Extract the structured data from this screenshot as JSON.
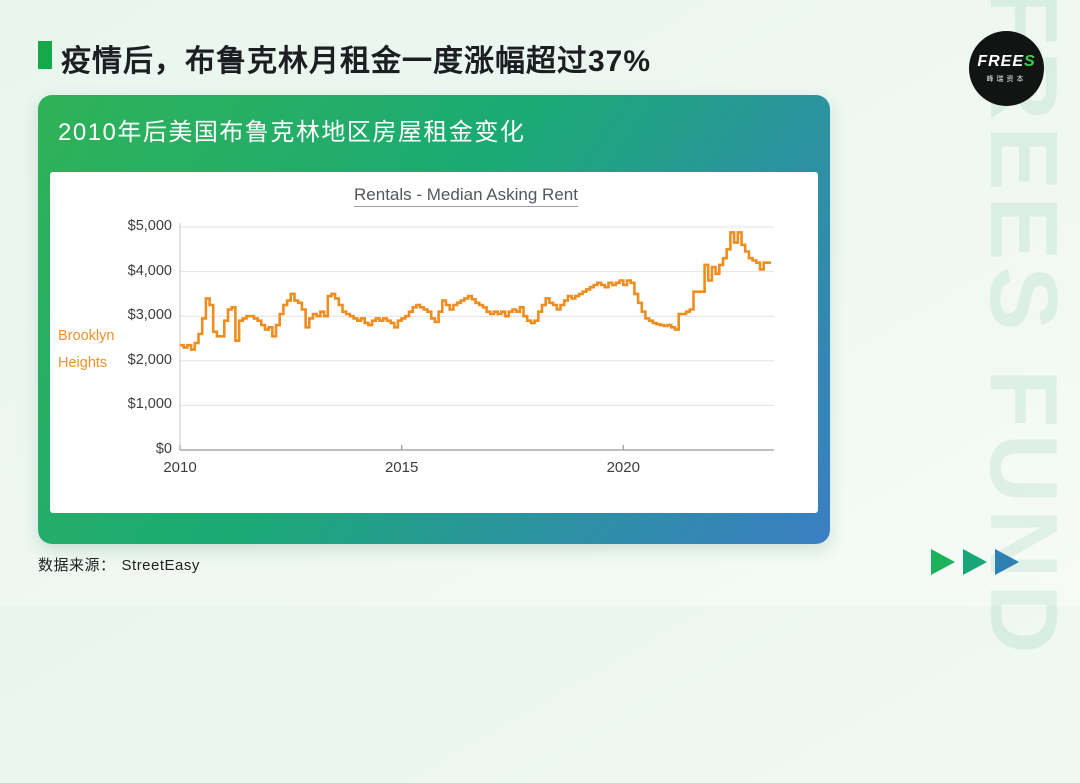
{
  "page": {
    "title": "疫情后，布鲁克林月租金一度涨幅超过37%",
    "source_label": "数据来源：",
    "source_value": "StreetEasy"
  },
  "logo": {
    "brand_main": "FREE",
    "brand_accent": "S",
    "brand_sub": "峰瑞资本"
  },
  "watermark": "FREES FUND",
  "card": {
    "header": "2010年后美国布鲁克林地区房屋租金变化"
  },
  "chart_data": {
    "type": "line",
    "style": "step",
    "frequency": "monthly",
    "title": "Rentals - Median Asking Rent",
    "series_label": "Brooklyn Heights",
    "x_start": 2010.0,
    "x_ticks": [
      2010,
      2015,
      2020
    ],
    "y_ticks": [
      "$0",
      "$1,000",
      "$2,000",
      "$3,000",
      "$4,000",
      "$5,000"
    ],
    "y_tick_values": [
      0,
      1000,
      2000,
      3000,
      4000,
      5000
    ],
    "xlim": [
      2010,
      2023.4
    ],
    "ylim": [
      0,
      5000
    ],
    "grid": "horizontal",
    "legend_position": "left-outside",
    "line_color": "#ef8d1f",
    "label_color": "#f0912c",
    "values": [
      2350,
      2300,
      2350,
      2250,
      2400,
      2600,
      2950,
      3400,
      3250,
      2650,
      2550,
      2550,
      2900,
      3150,
      3200,
      2450,
      2900,
      2950,
      3000,
      3000,
      2950,
      2900,
      2800,
      2700,
      2750,
      2550,
      2800,
      3050,
      3250,
      3350,
      3500,
      3350,
      3300,
      3150,
      2750,
      2950,
      3050,
      3000,
      3100,
      3000,
      3450,
      3500,
      3400,
      3250,
      3100,
      3050,
      3000,
      2950,
      2900,
      2950,
      2850,
      2800,
      2900,
      2950,
      2900,
      2950,
      2900,
      2850,
      2750,
      2900,
      2950,
      3000,
      3100,
      3200,
      3250,
      3200,
      3150,
      3100,
      2950,
      2870,
      3100,
      3350,
      3250,
      3150,
      3250,
      3300,
      3350,
      3400,
      3450,
      3380,
      3300,
      3250,
      3200,
      3100,
      3050,
      3100,
      3050,
      3100,
      3000,
      3100,
      3150,
      3100,
      3200,
      3000,
      2900,
      2850,
      2900,
      3100,
      3250,
      3400,
      3300,
      3250,
      3150,
      3250,
      3350,
      3450,
      3400,
      3450,
      3500,
      3550,
      3600,
      3650,
      3700,
      3750,
      3700,
      3650,
      3750,
      3700,
      3750,
      3800,
      3700,
      3800,
      3750,
      3500,
      3300,
      3100,
      2950,
      2900,
      2850,
      2820,
      2800,
      2780,
      2800,
      2750,
      2700,
      3050,
      3050,
      3100,
      3150,
      3550,
      3550,
      3550,
      4150,
      3800,
      4100,
      3950,
      4150,
      4300,
      4500,
      4880,
      4650,
      4880,
      4600,
      4450,
      4300,
      4250,
      4200,
      4050,
      4200,
      4200
    ]
  },
  "footer": {
    "arrow_colors": [
      "#1cb25b",
      "#18a578",
      "#2e7fb2"
    ]
  }
}
